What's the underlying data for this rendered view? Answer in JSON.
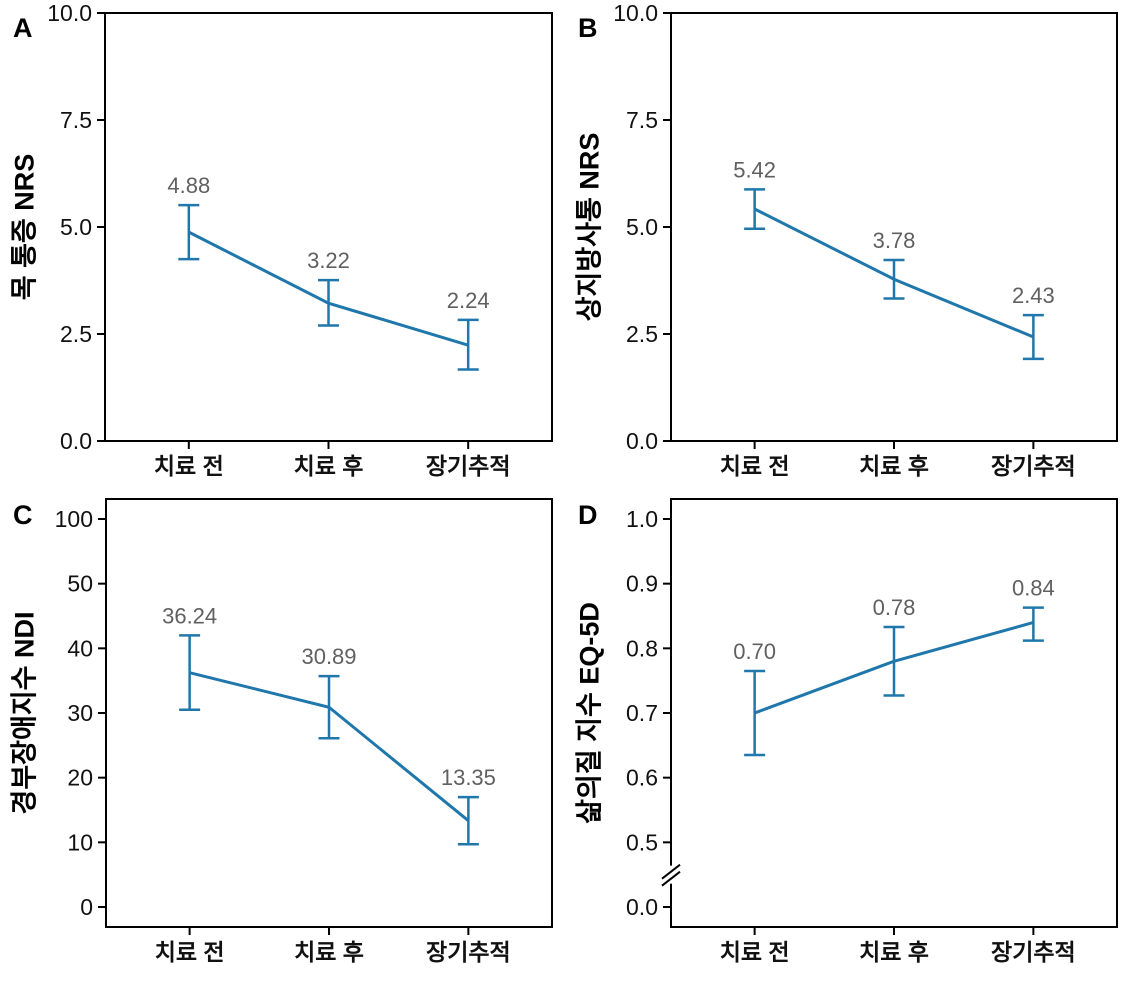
{
  "styles": {
    "background": "#ffffff",
    "line_color": "#1f77ab",
    "value_label_color": "#606060",
    "axis_color": "#000000",
    "tick_label_color": "#111111"
  },
  "chart_data": [
    {
      "panel_label": "A",
      "type": "line",
      "ylabel": "목 통증 NRS",
      "xlabel": "",
      "categories": [
        "치료 전",
        "치료 후",
        "장기추적"
      ],
      "values": [
        4.88,
        3.22,
        2.24
      ],
      "value_labels": [
        "4.88",
        "3.22",
        "2.24"
      ],
      "error_low": [
        4.25,
        2.7,
        1.67
      ],
      "error_high": [
        5.51,
        3.76,
        2.83
      ],
      "ytick_values": [
        0,
        2.5,
        5,
        7.5,
        10
      ],
      "ytick_labels": [
        "0.0",
        "2.5",
        "5.0",
        "7.5",
        "10.0"
      ],
      "ylim": [
        0,
        10
      ],
      "axis_break": false,
      "grid": false,
      "legend": false
    },
    {
      "panel_label": "B",
      "type": "line",
      "ylabel": "상지방사통 NRS",
      "xlabel": "",
      "categories": [
        "치료 전",
        "치료 후",
        "장기추적"
      ],
      "values": [
        5.42,
        3.78,
        2.43
      ],
      "value_labels": [
        "5.42",
        "3.78",
        "2.43"
      ],
      "error_low": [
        4.96,
        3.33,
        1.92
      ],
      "error_high": [
        5.88,
        4.23,
        2.94
      ],
      "ytick_values": [
        0,
        2.5,
        5,
        7.5,
        10
      ],
      "ytick_labels": [
        "0.0",
        "2.5",
        "5.0",
        "7.5",
        "10.0"
      ],
      "ylim": [
        0,
        10
      ],
      "axis_break": false,
      "grid": false,
      "legend": false
    },
    {
      "panel_label": "C",
      "type": "line",
      "ylabel": "경부장애지수 NDI",
      "xlabel": "",
      "categories": [
        "치료 전",
        "치료 후",
        "장기추적"
      ],
      "values": [
        36.24,
        30.89,
        13.35
      ],
      "value_labels": [
        "36.24",
        "30.89",
        "13.35"
      ],
      "error_low": [
        30.5,
        26.1,
        9.7
      ],
      "error_high": [
        42.0,
        35.7,
        17.0
      ],
      "ytick_values": [
        0,
        10,
        20,
        30,
        40,
        50,
        100
      ],
      "ytick_labels": [
        "0",
        "10",
        "20",
        "30",
        "40",
        "50",
        "100"
      ],
      "ylim": [
        0,
        100
      ],
      "scale_note": "ticks equally spaced; 50-100 interval compressed to one tick step",
      "axis_break": false,
      "grid": false,
      "legend": false
    },
    {
      "panel_label": "D",
      "type": "line",
      "ylabel": "삶의질 지수 EQ-5D",
      "xlabel": "",
      "categories": [
        "치료 전",
        "치료 후",
        "장기추적"
      ],
      "values": [
        0.7,
        0.78,
        0.84
      ],
      "value_labels": [
        "0.70",
        "0.78",
        "0.84"
      ],
      "error_low": [
        0.635,
        0.727,
        0.812
      ],
      "error_high": [
        0.765,
        0.833,
        0.863
      ],
      "ytick_values": [
        0,
        0.5,
        0.6,
        0.7,
        0.8,
        0.9,
        1.0
      ],
      "ytick_labels": [
        "0.0",
        "0.5",
        "0.6",
        "0.7",
        "0.8",
        "0.9",
        "1.0"
      ],
      "ylim": [
        0,
        1
      ],
      "scale_note": "axis break between 0.0 and 0.5",
      "axis_break": true,
      "grid": false,
      "legend": false
    }
  ]
}
